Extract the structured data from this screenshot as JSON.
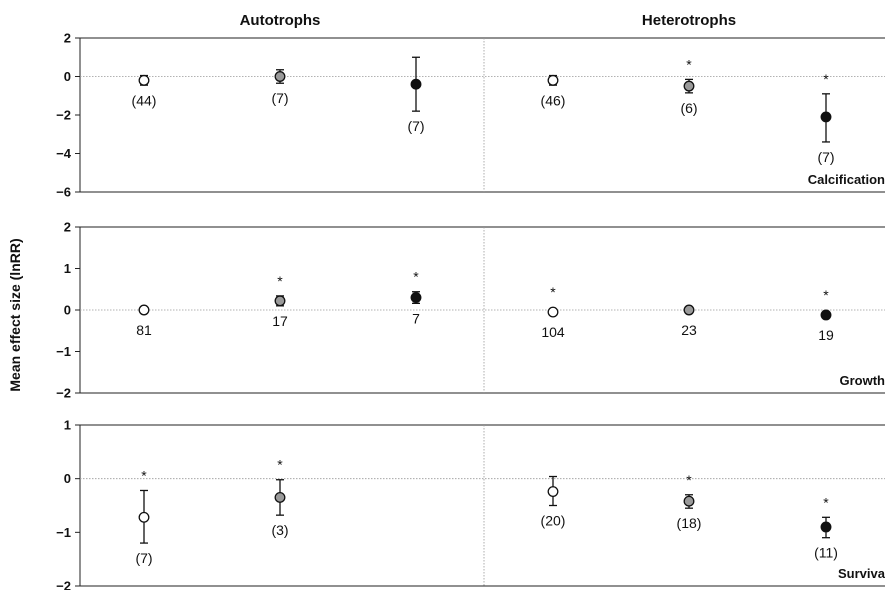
{
  "chart_data": {
    "type": "scatter",
    "ylabel": "Mean effect size (lnRR)",
    "groups": [
      "Autotrophs",
      "Heterotrophs"
    ],
    "fill_colors": {
      "white": "#ffffff",
      "grey": "#9a9a9a",
      "black": "#111111"
    },
    "panels": [
      {
        "label": "Calcification",
        "ylim": [
          -6,
          2
        ],
        "yticks": [
          "2",
          "0",
          "−2",
          "−4",
          "−6"
        ],
        "points": [
          {
            "group": "Autotrophs",
            "fill": "white",
            "y": -0.2,
            "lo": -0.45,
            "hi": 0.05,
            "n": "(44)",
            "sig": false
          },
          {
            "group": "Autotrophs",
            "fill": "grey",
            "y": 0.0,
            "lo": -0.35,
            "hi": 0.35,
            "n": "(7)",
            "sig": false
          },
          {
            "group": "Autotrophs",
            "fill": "black",
            "y": -0.4,
            "lo": -1.8,
            "hi": 1.0,
            "n": "(7)",
            "sig": false
          },
          {
            "group": "Heterotrophs",
            "fill": "white",
            "y": -0.2,
            "lo": -0.45,
            "hi": 0.05,
            "n": "(46)",
            "sig": false
          },
          {
            "group": "Heterotrophs",
            "fill": "grey",
            "y": -0.5,
            "lo": -0.85,
            "hi": -0.15,
            "n": "(6)",
            "sig": true
          },
          {
            "group": "Heterotrophs",
            "fill": "black",
            "y": -2.1,
            "lo": -3.4,
            "hi": -0.9,
            "n": "(7)",
            "sig": true
          }
        ]
      },
      {
        "label": "Growth",
        "ylim": [
          -2,
          2
        ],
        "yticks": [
          "2",
          "1",
          "0",
          "−1",
          "−2"
        ],
        "points": [
          {
            "group": "Autotrophs",
            "fill": "white",
            "y": 0.0,
            "lo": -0.04,
            "hi": 0.04,
            "n": "81",
            "sig": false
          },
          {
            "group": "Autotrophs",
            "fill": "grey",
            "y": 0.22,
            "lo": 0.1,
            "hi": 0.34,
            "n": "17",
            "sig": true
          },
          {
            "group": "Autotrophs",
            "fill": "black",
            "y": 0.3,
            "lo": 0.16,
            "hi": 0.44,
            "n": "7",
            "sig": true
          },
          {
            "group": "Heterotrophs",
            "fill": "white",
            "y": -0.05,
            "lo": -0.09,
            "hi": -0.01,
            "n": "104",
            "sig": true
          },
          {
            "group": "Heterotrophs",
            "fill": "grey",
            "y": 0.0,
            "lo": -0.05,
            "hi": 0.05,
            "n": "23",
            "sig": false
          },
          {
            "group": "Heterotrophs",
            "fill": "black",
            "y": -0.12,
            "lo": -0.18,
            "hi": -0.06,
            "n": "19",
            "sig": true
          }
        ]
      },
      {
        "label": "Surviva",
        "ylim": [
          -2,
          1
        ],
        "yticks": [
          "1",
          "0",
          "−1",
          "−2"
        ],
        "points": [
          {
            "group": "Autotrophs",
            "fill": "white",
            "y": -0.72,
            "lo": -1.2,
            "hi": -0.22,
            "n": "(7)",
            "sig": true
          },
          {
            "group": "Autotrophs",
            "fill": "grey",
            "y": -0.35,
            "lo": -0.68,
            "hi": -0.02,
            "n": "(3)",
            "sig": true
          },
          {
            "group": "Heterotrophs",
            "fill": "white",
            "y": -0.24,
            "lo": -0.5,
            "hi": 0.04,
            "n": "(20)",
            "sig": false
          },
          {
            "group": "Heterotrophs",
            "fill": "grey",
            "y": -0.42,
            "lo": -0.55,
            "hi": -0.3,
            "n": "(18)",
            "sig": true
          },
          {
            "group": "Heterotrophs",
            "fill": "black",
            "y": -0.9,
            "lo": -1.1,
            "hi": -0.72,
            "n": "(11)",
            "sig": true
          }
        ]
      }
    ],
    "significance_marker": "*"
  }
}
